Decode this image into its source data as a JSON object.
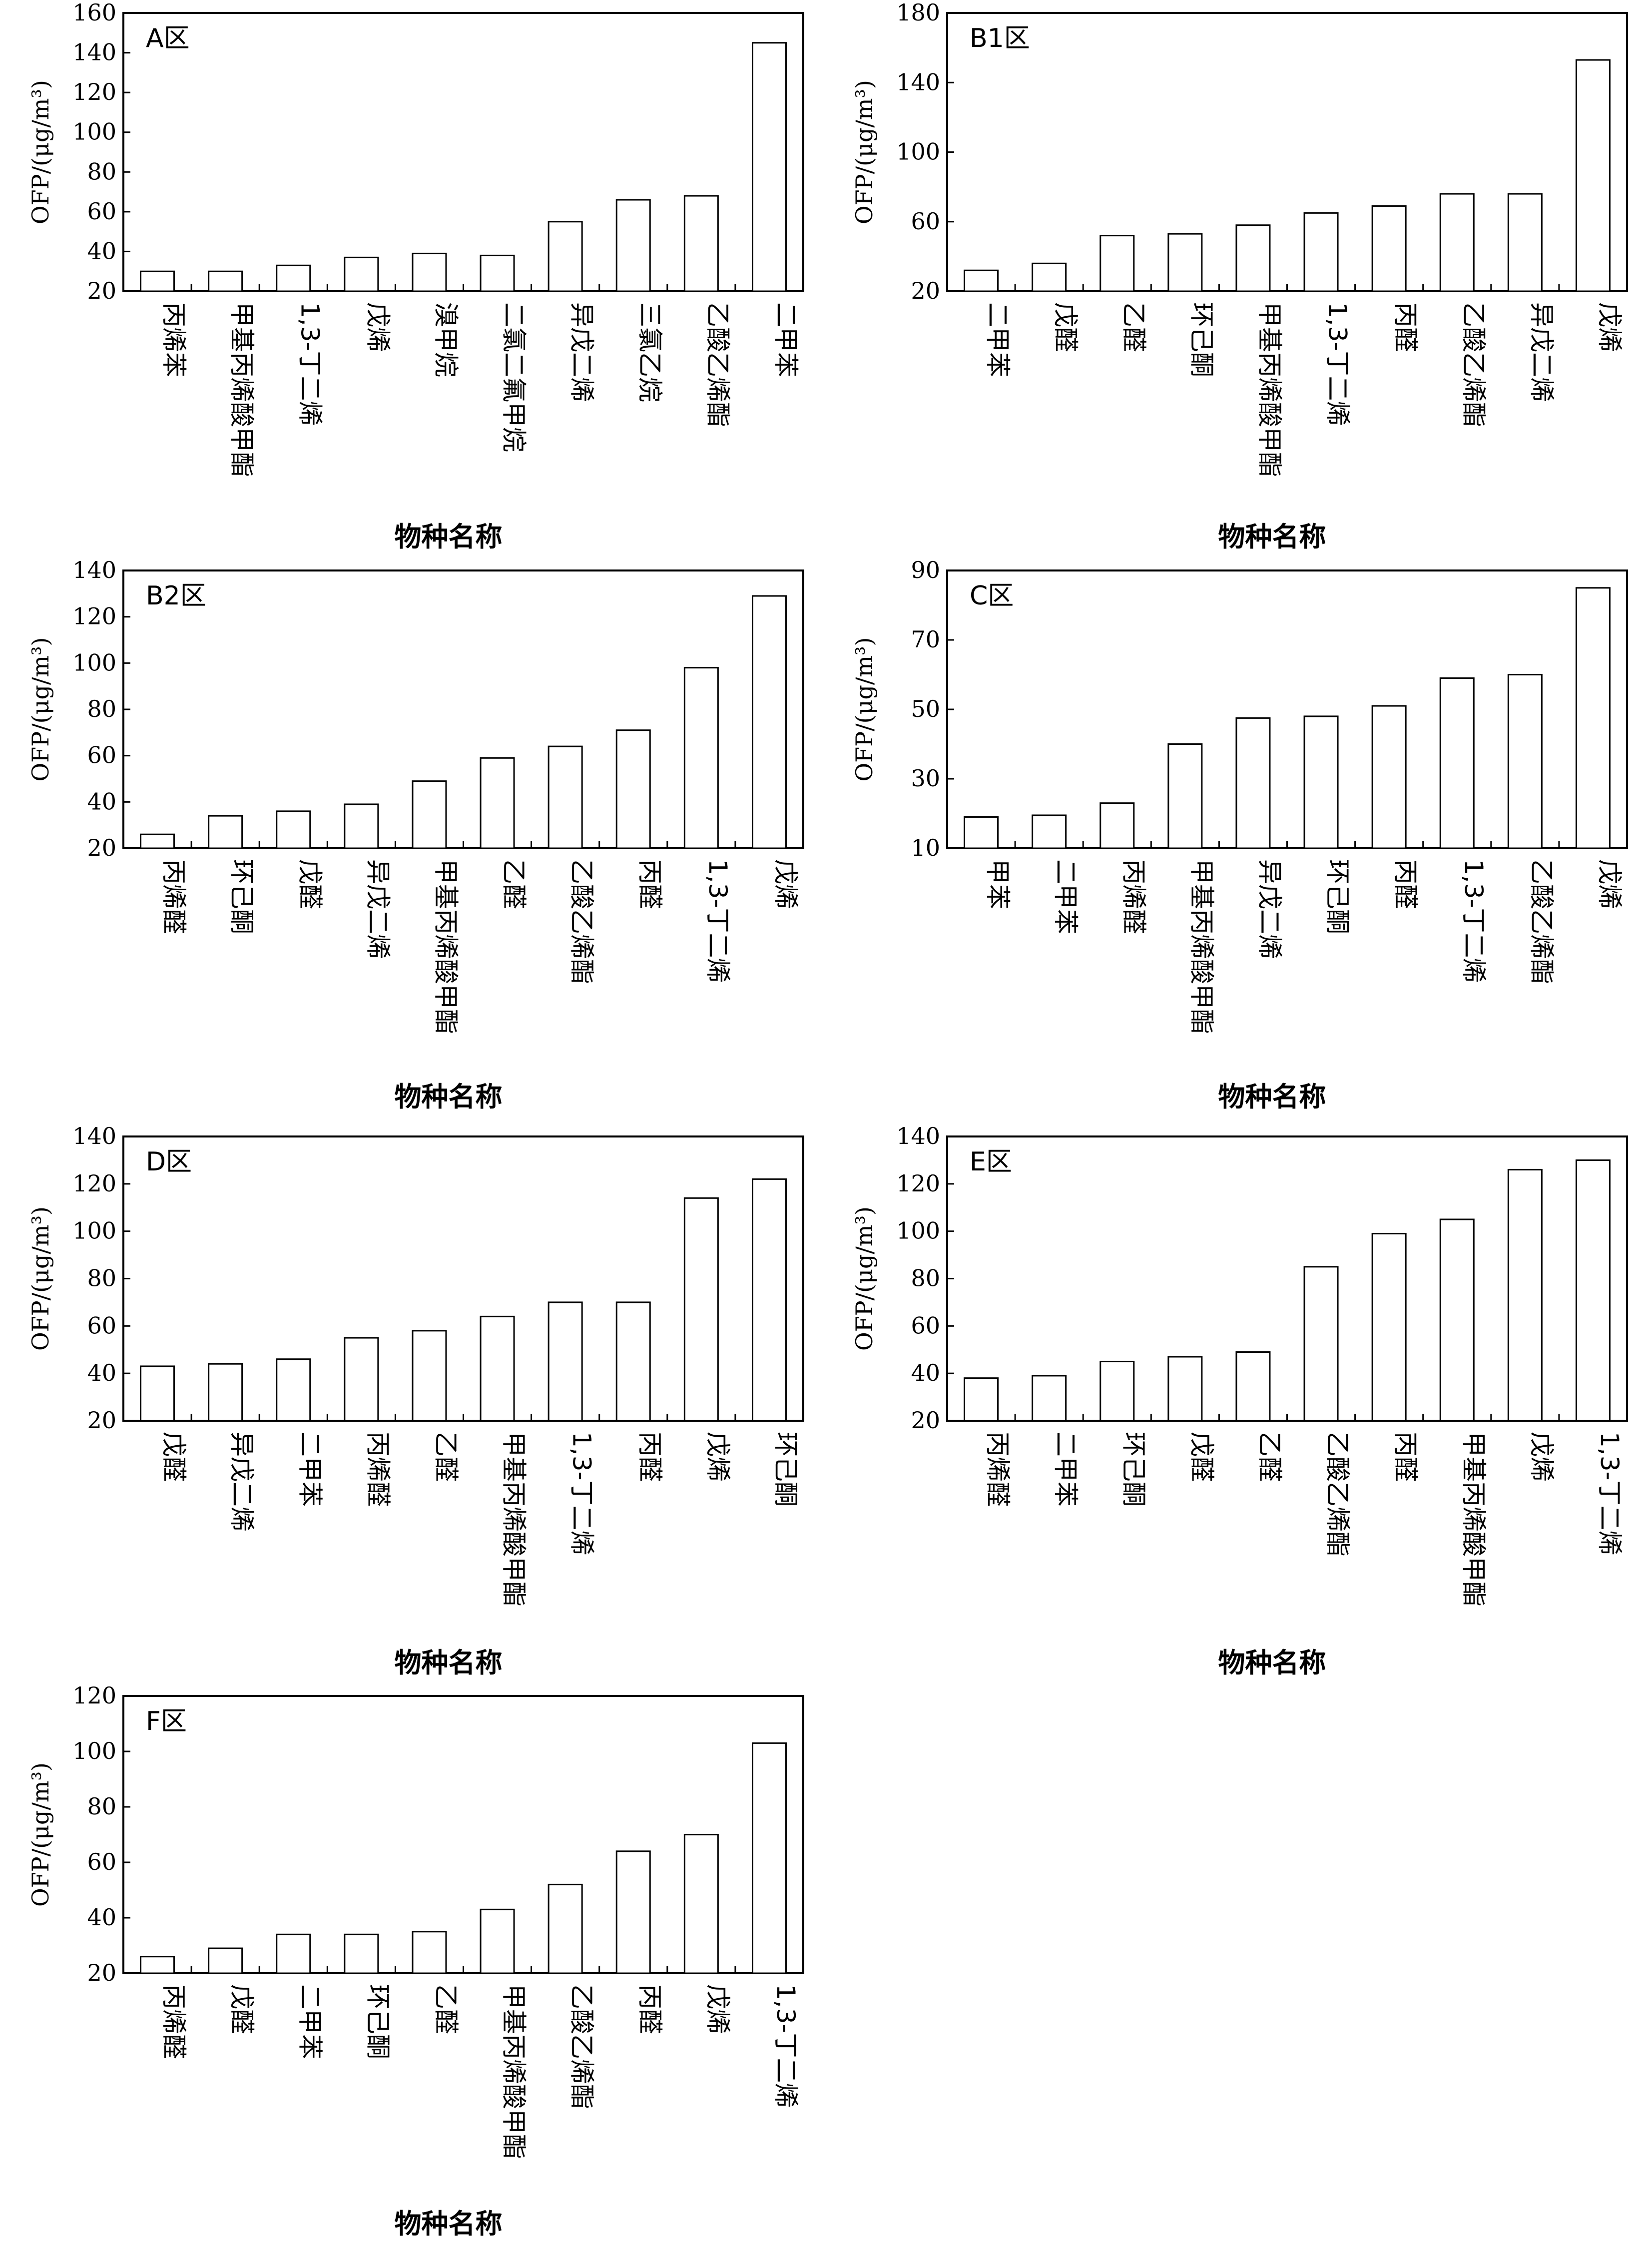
{
  "chart_data": [
    {
      "type": "bar",
      "panel_label": "A区",
      "ylabel": "OFP/(μg/m³)",
      "xlabel": "物种名称",
      "ylim": [
        20,
        160
      ],
      "yticks": [
        20,
        40,
        60,
        80,
        100,
        120,
        140,
        160
      ],
      "categories": [
        "丙烯苯",
        "甲基丙烯酸甲酯",
        "1,3-丁二烯",
        "戊烯",
        "溴甲烷",
        "二氯二氟甲烷",
        "异戊二烯",
        "三氯乙烷",
        "乙酸乙烯酯",
        "二甲苯"
      ],
      "values": [
        30,
        30,
        33,
        37,
        39,
        38,
        55,
        66,
        68,
        145
      ]
    },
    {
      "type": "bar",
      "panel_label": "B1区",
      "ylabel": "OFP/(μg/m³)",
      "xlabel": "物种名称",
      "ylim": [
        20,
        180
      ],
      "yticks": [
        20,
        60,
        100,
        140,
        180
      ],
      "categories": [
        "二甲苯",
        "戊醛",
        "乙醛",
        "环己酮",
        "甲基丙烯酸甲酯",
        "1,3-丁二烯",
        "丙醛",
        "乙酸乙烯酯",
        "异戊二烯",
        "戊烯"
      ],
      "values": [
        32,
        36,
        52,
        53,
        58,
        65,
        69,
        76,
        76,
        153
      ]
    },
    {
      "type": "bar",
      "panel_label": "B2区",
      "ylabel": "OFP/(μg/m³)",
      "xlabel": "物种名称",
      "ylim": [
        20,
        140
      ],
      "yticks": [
        20,
        40,
        60,
        80,
        100,
        120,
        140
      ],
      "categories": [
        "丙烯醛",
        "环己酮",
        "戊醛",
        "异戊二烯",
        "甲基丙烯酸甲酯",
        "乙醛",
        "乙酸乙烯酯",
        "丙醛",
        "1,3-丁二烯",
        "戊烯"
      ],
      "values": [
        26,
        34,
        36,
        39,
        49,
        59,
        64,
        71,
        98,
        129
      ]
    },
    {
      "type": "bar",
      "panel_label": "C区",
      "ylabel": "OFP/(μg/m³)",
      "xlabel": "物种名称",
      "ylim": [
        10,
        90
      ],
      "yticks": [
        10,
        30,
        50,
        70,
        90
      ],
      "categories": [
        "甲苯",
        "二甲苯",
        "丙烯醛",
        "甲基丙烯酸甲酯",
        "异戊二烯",
        "环己酮",
        "丙醛",
        "1,3-丁二烯",
        "乙酸乙烯酯",
        "戊烯"
      ],
      "values": [
        19,
        19.5,
        23,
        40,
        47.5,
        48,
        51,
        59,
        60,
        85
      ]
    },
    {
      "type": "bar",
      "panel_label": "D区",
      "ylabel": "OFP/(μg/m³)",
      "xlabel": "物种名称",
      "ylim": [
        20,
        140
      ],
      "yticks": [
        20,
        40,
        60,
        80,
        100,
        120,
        140
      ],
      "categories": [
        "戊醛",
        "异戊二烯",
        "二甲苯",
        "丙烯醛",
        "乙醛",
        "甲基丙烯酸甲酯",
        "1,3-丁二烯",
        "丙醛",
        "戊烯",
        "环己酮"
      ],
      "values": [
        43,
        44,
        46,
        55,
        58,
        64,
        70,
        70,
        114,
        122
      ]
    },
    {
      "type": "bar",
      "panel_label": "E区",
      "ylabel": "OFP/(μg/m³)",
      "xlabel": "物种名称",
      "ylim": [
        20,
        140
      ],
      "yticks": [
        20,
        40,
        60,
        80,
        100,
        120,
        140
      ],
      "categories": [
        "丙烯醛",
        "二甲苯",
        "环己酮",
        "戊醛",
        "乙醛",
        "乙酸乙烯酯",
        "丙醛",
        "甲基丙烯酸甲酯",
        "戊烯",
        "1,3-丁二烯"
      ],
      "values": [
        38,
        39,
        45,
        47,
        49,
        85,
        99,
        105,
        126,
        130
      ]
    },
    {
      "type": "bar",
      "panel_label": "F区",
      "ylabel": "OFP/(μg/m³)",
      "xlabel": "物种名称",
      "ylim": [
        20,
        120
      ],
      "yticks": [
        20,
        40,
        60,
        80,
        100,
        120
      ],
      "categories": [
        "丙烯醛",
        "戊醛",
        "二甲苯",
        "环己酮",
        "乙醛",
        "甲基丙烯酸甲酯",
        "乙酸乙烯酯",
        "丙醛",
        "戊烯",
        "1,3-丁二烯"
      ],
      "values": [
        26,
        29,
        34,
        34,
        35,
        43,
        52,
        64,
        70,
        103
      ]
    }
  ]
}
